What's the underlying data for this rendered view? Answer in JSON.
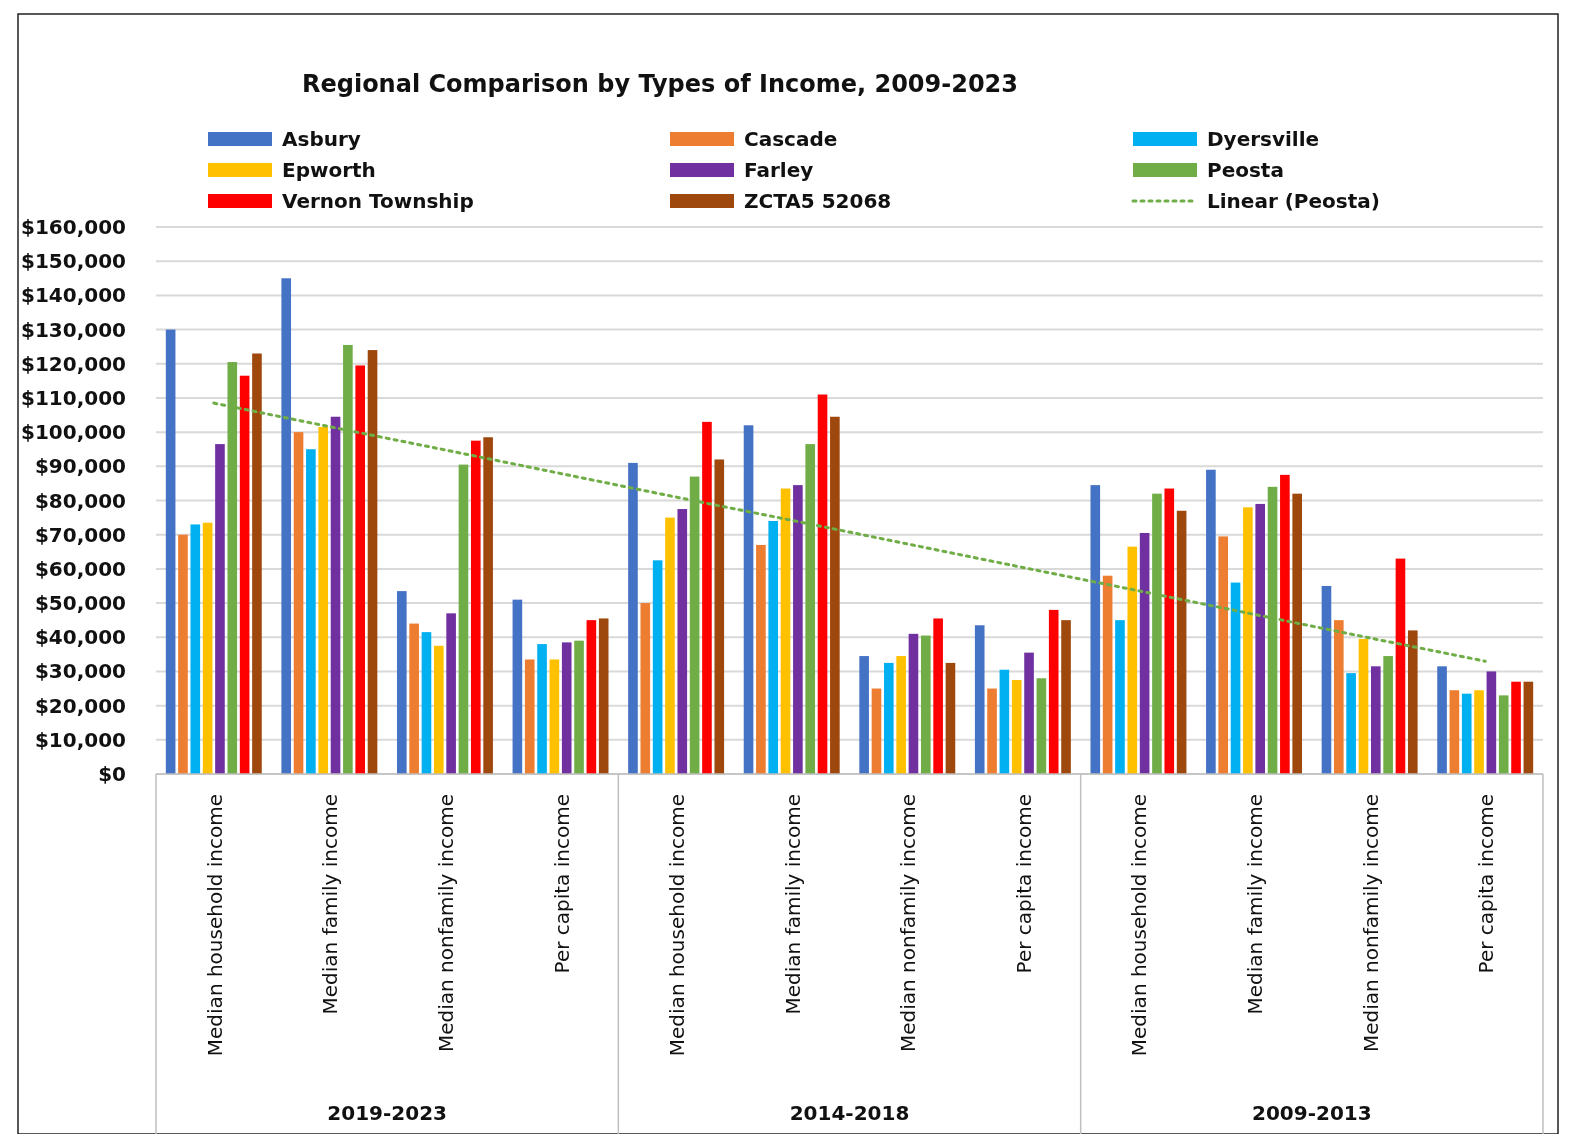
{
  "chart_data": {
    "type": "bar",
    "title": "Regional Comparison by Types of Income, 2009-2023",
    "categories": [
      "Median household income",
      "Median family income",
      "Median nonfamily income",
      "Per capita income",
      "Median household income",
      "Median family income",
      "Median nonfamily income",
      "Per capita income",
      "Median household income",
      "Median family income",
      "Median nonfamily income",
      "Per capita income"
    ],
    "series": [
      {
        "name": "Asbury",
        "color": "#4472c4",
        "values": [
          130000,
          145000,
          53500,
          51000,
          91000,
          102000,
          34500,
          43500,
          84500,
          89000,
          55000,
          31500
        ]
      },
      {
        "name": "Cascade",
        "color": "#ed7d31",
        "values": [
          70000,
          100000,
          44000,
          33500,
          50000,
          67000,
          25000,
          25000,
          58000,
          69500,
          45000,
          24500
        ]
      },
      {
        "name": "Dyersville",
        "color": "#00b0f0",
        "values": [
          73000,
          95000,
          41500,
          38000,
          62500,
          74000,
          32500,
          30500,
          45000,
          56000,
          29500,
          23500
        ]
      },
      {
        "name": "Epworth",
        "color": "#ffc000",
        "values": [
          73500,
          101500,
          37500,
          33500,
          75000,
          83500,
          34500,
          27500,
          66500,
          78000,
          39500,
          24500
        ]
      },
      {
        "name": "Farley",
        "color": "#7030a0",
        "values": [
          96500,
          104500,
          47000,
          38500,
          77500,
          84500,
          41000,
          35500,
          70500,
          79000,
          31500,
          30000
        ]
      },
      {
        "name": "Peosta",
        "color": "#70ad47",
        "values": [
          120500,
          125500,
          90500,
          39000,
          87000,
          96500,
          40500,
          28000,
          82000,
          84000,
          34500,
          23000
        ]
      },
      {
        "name": "Vernon Township",
        "color": "#ff0000",
        "values": [
          116500,
          119500,
          97500,
          45000,
          103000,
          111000,
          45500,
          48000,
          83500,
          87500,
          63000,
          27000
        ]
      },
      {
        "name": "ZCTA5 52068",
        "color": "#9e480e",
        "values": [
          123000,
          124000,
          98500,
          45500,
          92000,
          104500,
          32500,
          45000,
          77000,
          82000,
          42000,
          27000
        ]
      },
      {
        "name": "Linear (Peosta)",
        "type": "line",
        "color": "#70ad47",
        "line_style": "dotted",
        "marker": "none",
        "values": [
          108500,
          101600,
          94800,
          87900,
          81000,
          74200,
          67300,
          60400,
          53600,
          46700,
          39800,
          33000
        ]
      }
    ],
    "ylim": [
      0,
      160000
    ],
    "yticks": [
      {
        "value": 0,
        "label": "$0"
      },
      {
        "value": 10000,
        "label": "$10,000"
      },
      {
        "value": 20000,
        "label": "$20,000"
      },
      {
        "value": 30000,
        "label": "$30,000"
      },
      {
        "value": 40000,
        "label": "$40,000"
      },
      {
        "value": 50000,
        "label": "$50,000"
      },
      {
        "value": 60000,
        "label": "$60,000"
      },
      {
        "value": 70000,
        "label": "$70,000"
      },
      {
        "value": 80000,
        "label": "$80,000"
      },
      {
        "value": 90000,
        "label": "$90,000"
      },
      {
        "value": 100000,
        "label": "$100,000"
      },
      {
        "value": 110000,
        "label": "$110,000"
      },
      {
        "value": 120000,
        "label": "$120,000"
      },
      {
        "value": 130000,
        "label": "$130,000"
      },
      {
        "value": 140000,
        "label": "$140,000"
      },
      {
        "value": 150000,
        "label": "$150,000"
      },
      {
        "value": 160000,
        "label": "$160,000"
      }
    ],
    "grid": "y",
    "legend": "top",
    "annotations": [
      "2019-2023",
      "2014-2018",
      "2009-2013"
    ]
  }
}
